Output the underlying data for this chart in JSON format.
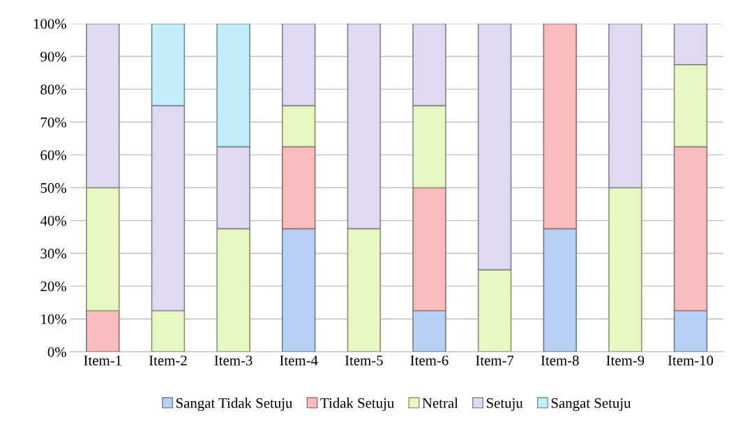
{
  "chart_data": {
    "type": "bar",
    "stacked": true,
    "categories": [
      "Item-1",
      "Item-2",
      "Item-3",
      "Item-4",
      "Item-5",
      "Item-6",
      "Item-7",
      "Item-8",
      "Item-9",
      "Item-10"
    ],
    "series": [
      {
        "name": "Sangat Tidak Setuju",
        "color": "#b9d0f5",
        "values": [
          0,
          0,
          0,
          37.5,
          0,
          12.5,
          0,
          37.5,
          0,
          12.5
        ]
      },
      {
        "name": "Tidak Setuju",
        "color": "#f9bcbc",
        "values": [
          12.5,
          0,
          0,
          25,
          0,
          37.5,
          0,
          62.5,
          0,
          50
        ]
      },
      {
        "name": "Netral",
        "color": "#e6f7c2",
        "values": [
          37.5,
          12.5,
          37.5,
          12.5,
          37.5,
          25,
          25,
          0,
          50,
          25
        ]
      },
      {
        "name": "Setuju",
        "color": "#e0d9f2",
        "values": [
          50,
          62.5,
          25,
          25,
          62.5,
          25,
          75,
          0,
          50,
          12.5
        ]
      },
      {
        "name": "Sangat Setuju",
        "color": "#c2eefa",
        "values": [
          0,
          25,
          37.5,
          0,
          0,
          0,
          0,
          0,
          0,
          0
        ]
      }
    ],
    "ylim": [
      0,
      100
    ],
    "yticks": [
      {
        "value": 0,
        "label": "0%"
      },
      {
        "value": 10,
        "label": "10%"
      },
      {
        "value": 20,
        "label": "20%"
      },
      {
        "value": 30,
        "label": "30%"
      },
      {
        "value": 40,
        "label": "40%"
      },
      {
        "value": 50,
        "label": "50%"
      },
      {
        "value": 60,
        "label": "60%"
      },
      {
        "value": 70,
        "label": "70%"
      },
      {
        "value": 80,
        "label": "80%"
      },
      {
        "value": 90,
        "label": "90%"
      },
      {
        "value": 100,
        "label": "100%"
      }
    ],
    "grid": "y",
    "legend": "bottom"
  }
}
